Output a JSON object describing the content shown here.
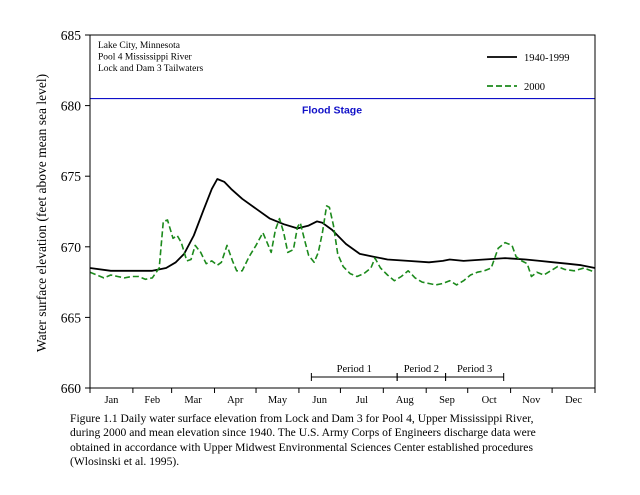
{
  "chart_data": {
    "type": "line",
    "ylabel": "Water surface elevation (feet above mean sea level)",
    "xlabel": "",
    "ylim": [
      660,
      685
    ],
    "yticks": [
      660,
      665,
      670,
      675,
      680,
      685
    ],
    "xlim": [
      0,
      365
    ],
    "month_ticks": [
      0,
      31,
      59,
      90,
      120,
      151,
      181,
      212,
      243,
      273,
      304,
      334,
      365
    ],
    "month_labels": [
      "Jan",
      "Feb",
      "Mar",
      "Apr",
      "May",
      "Jun",
      "Jul",
      "Aug",
      "Sep",
      "Oct",
      "Nov",
      "Dec"
    ],
    "inset_text": [
      "Lake City, Minnesota",
      "Pool 4 Mississippi River",
      "Lock and Dam 3 Tailwaters"
    ],
    "flood_stage": {
      "value": 680.5,
      "label": "Flood Stage",
      "color": "#1010c8"
    },
    "periods": [
      {
        "label": "Period 1",
        "start": 160,
        "end": 222
      },
      {
        "label": "Period 2",
        "start": 222,
        "end": 257
      },
      {
        "label": "Period 3",
        "start": 257,
        "end": 299
      }
    ],
    "legend_position": "top-right",
    "grid": false,
    "series": [
      {
        "name": "1940-1999",
        "color": "#000000",
        "style": "solid",
        "points": [
          [
            0,
            668.5
          ],
          [
            15,
            668.3
          ],
          [
            30,
            668.3
          ],
          [
            45,
            668.3
          ],
          [
            55,
            668.5
          ],
          [
            62,
            668.9
          ],
          [
            68,
            669.5
          ],
          [
            75,
            670.8
          ],
          [
            82,
            672.6
          ],
          [
            88,
            674.1
          ],
          [
            92,
            674.8
          ],
          [
            97,
            674.6
          ],
          [
            102,
            674.1
          ],
          [
            110,
            673.4
          ],
          [
            120,
            672.7
          ],
          [
            130,
            672.0
          ],
          [
            140,
            671.6
          ],
          [
            150,
            671.3
          ],
          [
            158,
            671.5
          ],
          [
            164,
            671.8
          ],
          [
            168,
            671.7
          ],
          [
            175,
            671.2
          ],
          [
            185,
            670.2
          ],
          [
            195,
            669.5
          ],
          [
            205,
            669.3
          ],
          [
            215,
            669.1
          ],
          [
            230,
            669.0
          ],
          [
            245,
            668.9
          ],
          [
            255,
            669.0
          ],
          [
            260,
            669.1
          ],
          [
            270,
            669.0
          ],
          [
            285,
            669.1
          ],
          [
            300,
            669.2
          ],
          [
            315,
            669.1
          ],
          [
            325,
            669.0
          ],
          [
            335,
            668.9
          ],
          [
            345,
            668.8
          ],
          [
            355,
            668.7
          ],
          [
            365,
            668.5
          ]
        ]
      },
      {
        "name": "2000",
        "color": "#1c8a1c",
        "style": "dashed",
        "points": [
          [
            0,
            668.2
          ],
          [
            5,
            668.0
          ],
          [
            10,
            667.8
          ],
          [
            15,
            668.0
          ],
          [
            20,
            667.9
          ],
          [
            25,
            667.8
          ],
          [
            30,
            667.9
          ],
          [
            35,
            667.9
          ],
          [
            40,
            667.7
          ],
          [
            45,
            667.8
          ],
          [
            50,
            668.5
          ],
          [
            53,
            671.8
          ],
          [
            56,
            671.9
          ],
          [
            60,
            670.6
          ],
          [
            63,
            670.8
          ],
          [
            66,
            670.3
          ],
          [
            70,
            669.0
          ],
          [
            73,
            669.1
          ],
          [
            76,
            670.1
          ],
          [
            80,
            669.6
          ],
          [
            84,
            668.8
          ],
          [
            88,
            669.0
          ],
          [
            92,
            668.7
          ],
          [
            95,
            668.9
          ],
          [
            99,
            670.1
          ],
          [
            103,
            669.0
          ],
          [
            106,
            668.3
          ],
          [
            110,
            668.3
          ],
          [
            115,
            669.3
          ],
          [
            120,
            670.1
          ],
          [
            125,
            671.0
          ],
          [
            128,
            670.3
          ],
          [
            131,
            669.6
          ],
          [
            134,
            671.2
          ],
          [
            137,
            672.0
          ],
          [
            140,
            671.0
          ],
          [
            143,
            669.6
          ],
          [
            147,
            669.8
          ],
          [
            150,
            671.4
          ],
          [
            152,
            671.7
          ],
          [
            155,
            670.5
          ],
          [
            158,
            669.4
          ],
          [
            162,
            668.9
          ],
          [
            165,
            669.6
          ],
          [
            168,
            671.0
          ],
          [
            171,
            672.9
          ],
          [
            173,
            672.8
          ],
          [
            176,
            671.5
          ],
          [
            179,
            669.5
          ],
          [
            183,
            668.6
          ],
          [
            188,
            668.1
          ],
          [
            193,
            667.9
          ],
          [
            198,
            668.1
          ],
          [
            203,
            668.5
          ],
          [
            206,
            669.2
          ],
          [
            210,
            668.5
          ],
          [
            215,
            668.0
          ],
          [
            220,
            667.6
          ],
          [
            225,
            667.9
          ],
          [
            230,
            668.3
          ],
          [
            235,
            667.8
          ],
          [
            240,
            667.5
          ],
          [
            245,
            667.4
          ],
          [
            250,
            667.3
          ],
          [
            255,
            667.4
          ],
          [
            260,
            667.6
          ],
          [
            265,
            667.3
          ],
          [
            270,
            667.6
          ],
          [
            275,
            668.0
          ],
          [
            280,
            668.2
          ],
          [
            285,
            668.3
          ],
          [
            290,
            668.5
          ],
          [
            295,
            669.9
          ],
          [
            300,
            670.3
          ],
          [
            305,
            670.1
          ],
          [
            308,
            669.3
          ],
          [
            312,
            669.0
          ],
          [
            316,
            668.8
          ],
          [
            319,
            667.9
          ],
          [
            323,
            668.2
          ],
          [
            328,
            668.0
          ],
          [
            333,
            668.3
          ],
          [
            338,
            668.6
          ],
          [
            343,
            668.4
          ],
          [
            350,
            668.3
          ],
          [
            357,
            668.5
          ],
          [
            365,
            668.2
          ]
        ]
      }
    ]
  },
  "caption_lines": [
    "Figure 1.1 Daily water surface elevation from Lock and Dam 3 for Pool 4, Upper Mississippi River,",
    "during 2000 and mean elevation since 1940.  The U.S. Army Corps of Engineers discharge data were",
    "obtained in accordance with Upper Midwest Environmental Sciences Center established procedures",
    "(Wlosinski et al. 1995)."
  ]
}
